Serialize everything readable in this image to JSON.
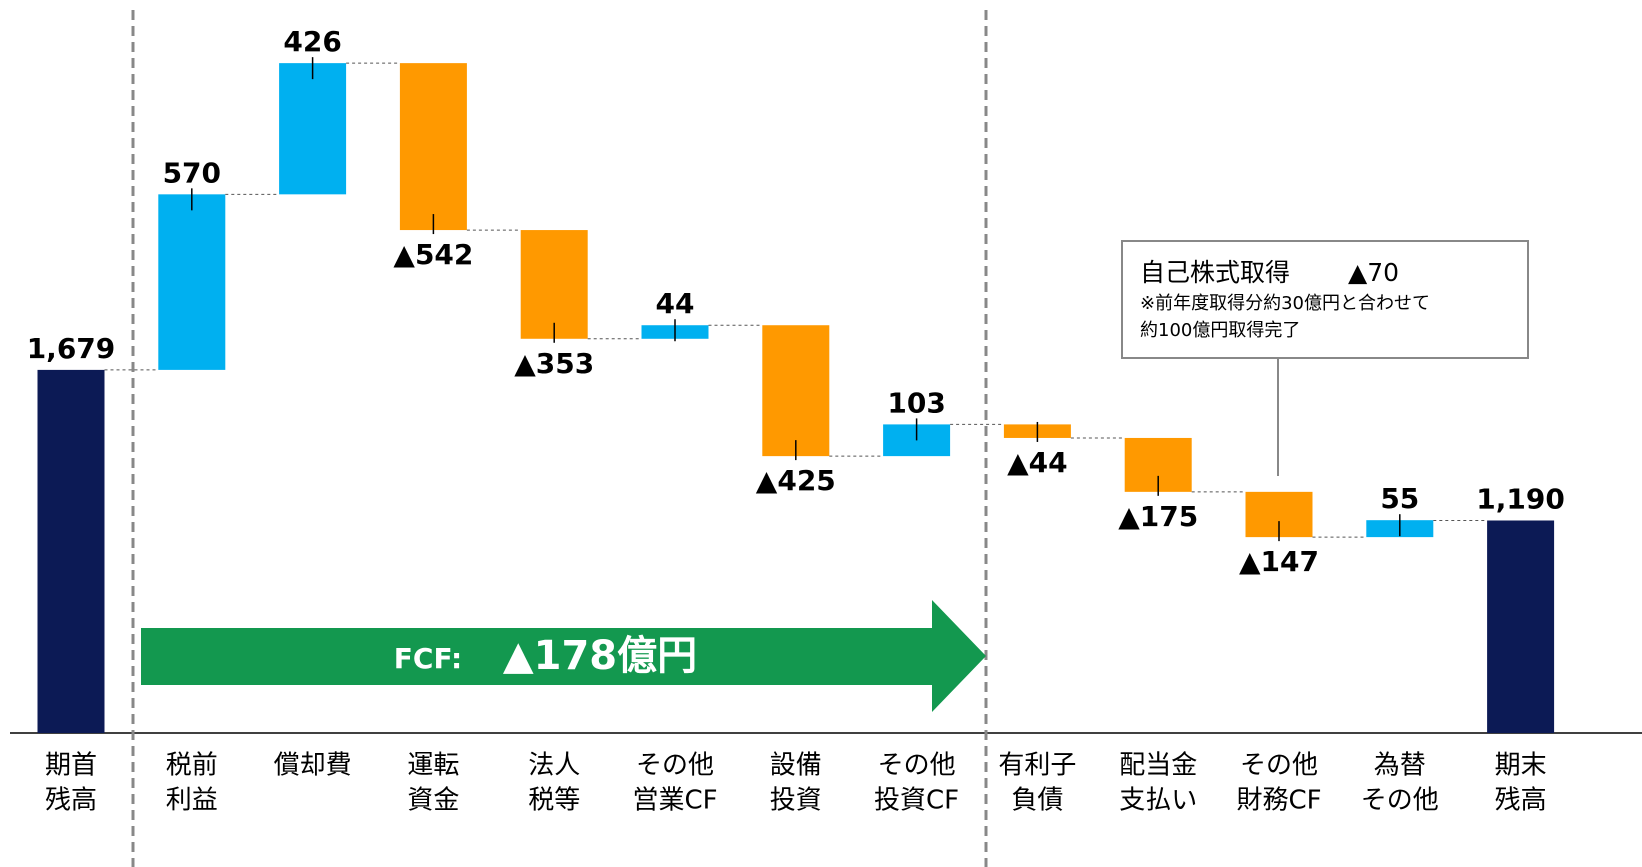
{
  "chart_data": {
    "type": "waterfall",
    "categories": [
      [
        "期首",
        "残高"
      ],
      [
        "税前",
        "利益"
      ],
      [
        "償却費"
      ],
      [
        "運転",
        "資金"
      ],
      [
        "法人",
        "税等"
      ],
      [
        "その他",
        "営業CF"
      ],
      [
        "設備",
        "投資"
      ],
      [
        "その他",
        "投資CF"
      ],
      [
        "有利子",
        "負債"
      ],
      [
        "配当金",
        "支払い"
      ],
      [
        "その他",
        "財務CF"
      ],
      [
        "為替",
        "その他"
      ],
      [
        "期末",
        "残高"
      ]
    ],
    "values": [
      1679,
      570,
      426,
      -542,
      -353,
      44,
      -425,
      103,
      -44,
      -175,
      -147,
      55,
      1190
    ],
    "value_labels": [
      "1,679",
      "570",
      "426",
      "▲542",
      "▲353",
      "44",
      "▲425",
      "103",
      "▲44",
      "▲175",
      "▲147",
      "55",
      "1,190"
    ],
    "total_indices": [
      0,
      12
    ],
    "total_color": "#0c1a55",
    "increase_color": "#00b0f0",
    "decrease_color": "#ff9900",
    "ylim": [
      500,
      2880
    ],
    "annotations": {
      "fcf": {
        "label": "FCF:",
        "value_label": "▲178億円",
        "color": "#13984f"
      },
      "buyback": {
        "title": "自己株式取得",
        "value_label": "▲70",
        "notes": [
          "※前年度取得分約30億円と合わせて",
          "約100億円取得完了"
        ]
      }
    }
  }
}
